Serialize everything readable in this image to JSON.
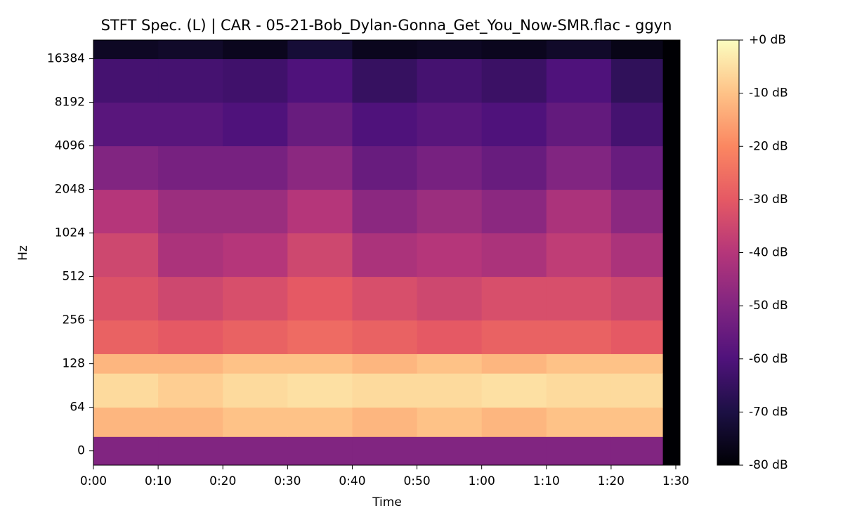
{
  "chart_data": {
    "type": "heatmap",
    "title": "STFT Spec. (L) | CAR - 05-21-Bob_Dylan-Gonna_Get_You_Now-SMR.flac - ggyn",
    "xlabel": "Time",
    "ylabel": "Hz",
    "xlim": [
      0,
      90.65
    ],
    "xticks": [
      {
        "value": 0,
        "label": "0:00"
      },
      {
        "value": 10,
        "label": "0:10"
      },
      {
        "value": 20,
        "label": "0:20"
      },
      {
        "value": 30,
        "label": "0:30"
      },
      {
        "value": 40,
        "label": "0:40"
      },
      {
        "value": 50,
        "label": "0:50"
      },
      {
        "value": 60,
        "label": "1:00"
      },
      {
        "value": 70,
        "label": "1:10"
      },
      {
        "value": 80,
        "label": "1:20"
      },
      {
        "value": 90,
        "label": "1:30"
      }
    ],
    "yscale": "symlog",
    "linthresh": 64,
    "ylim": [
      -21,
      22050
    ],
    "yticks": [
      0,
      64,
      128,
      256,
      512,
      1024,
      2048,
      4096,
      8192,
      16384
    ],
    "x_bins": [
      0,
      10,
      20,
      30,
      40,
      50,
      60,
      70,
      80,
      88,
      90.65
    ],
    "y_bins": [
      -21,
      21,
      64,
      110,
      150,
      256,
      512,
      1024,
      2048,
      4096,
      8192,
      16384,
      22050
    ],
    "z": [
      [
        -50,
        -50,
        -50,
        -50,
        -50,
        -50,
        -50,
        -50,
        -50,
        -80
      ],
      [
        -12,
        -12,
        -10,
        -10,
        -12,
        -10,
        -12,
        -10,
        -10,
        -80
      ],
      [
        -6,
        -8,
        -6,
        -5,
        -6,
        -6,
        -5,
        -6,
        -6,
        -80
      ],
      [
        -12,
        -12,
        -10,
        -10,
        -12,
        -10,
        -12,
        -10,
        -10,
        -80
      ],
      [
        -28,
        -30,
        -28,
        -26,
        -28,
        -30,
        -28,
        -28,
        -30,
        -80
      ],
      [
        -32,
        -35,
        -33,
        -30,
        -33,
        -35,
        -33,
        -33,
        -35,
        -80
      ],
      [
        -35,
        -42,
        -40,
        -35,
        -42,
        -40,
        -42,
        -38,
        -42,
        -80
      ],
      [
        -40,
        -45,
        -45,
        -40,
        -48,
        -45,
        -48,
        -42,
        -48,
        -80
      ],
      [
        -50,
        -52,
        -52,
        -48,
        -55,
        -52,
        -55,
        -50,
        -55,
        -80
      ],
      [
        -58,
        -58,
        -60,
        -55,
        -60,
        -58,
        -60,
        -56,
        -62,
        -80
      ],
      [
        -62,
        -62,
        -63,
        -60,
        -65,
        -62,
        -64,
        -60,
        -66,
        -80
      ],
      [
        -75,
        -74,
        -76,
        -72,
        -76,
        -75,
        -76,
        -74,
        -77,
        -80
      ]
    ],
    "clim": [
      -80,
      0
    ],
    "colorbar_ticks": [
      {
        "value": 0,
        "label": "+0 dB"
      },
      {
        "value": -10,
        "label": "-10 dB"
      },
      {
        "value": -20,
        "label": "-20 dB"
      },
      {
        "value": -30,
        "label": "-30 dB"
      },
      {
        "value": -40,
        "label": "-40 dB"
      },
      {
        "value": -50,
        "label": "-50 dB"
      },
      {
        "value": -60,
        "label": "-60 dB"
      },
      {
        "value": -70,
        "label": "-70 dB"
      },
      {
        "value": -80,
        "label": "-80 dB"
      }
    ],
    "colormap": [
      "#000004",
      "#1c1044",
      "#4f127b",
      "#812581",
      "#b5367a",
      "#e55964",
      "#fb8761",
      "#fec287",
      "#fcfdbf"
    ]
  }
}
